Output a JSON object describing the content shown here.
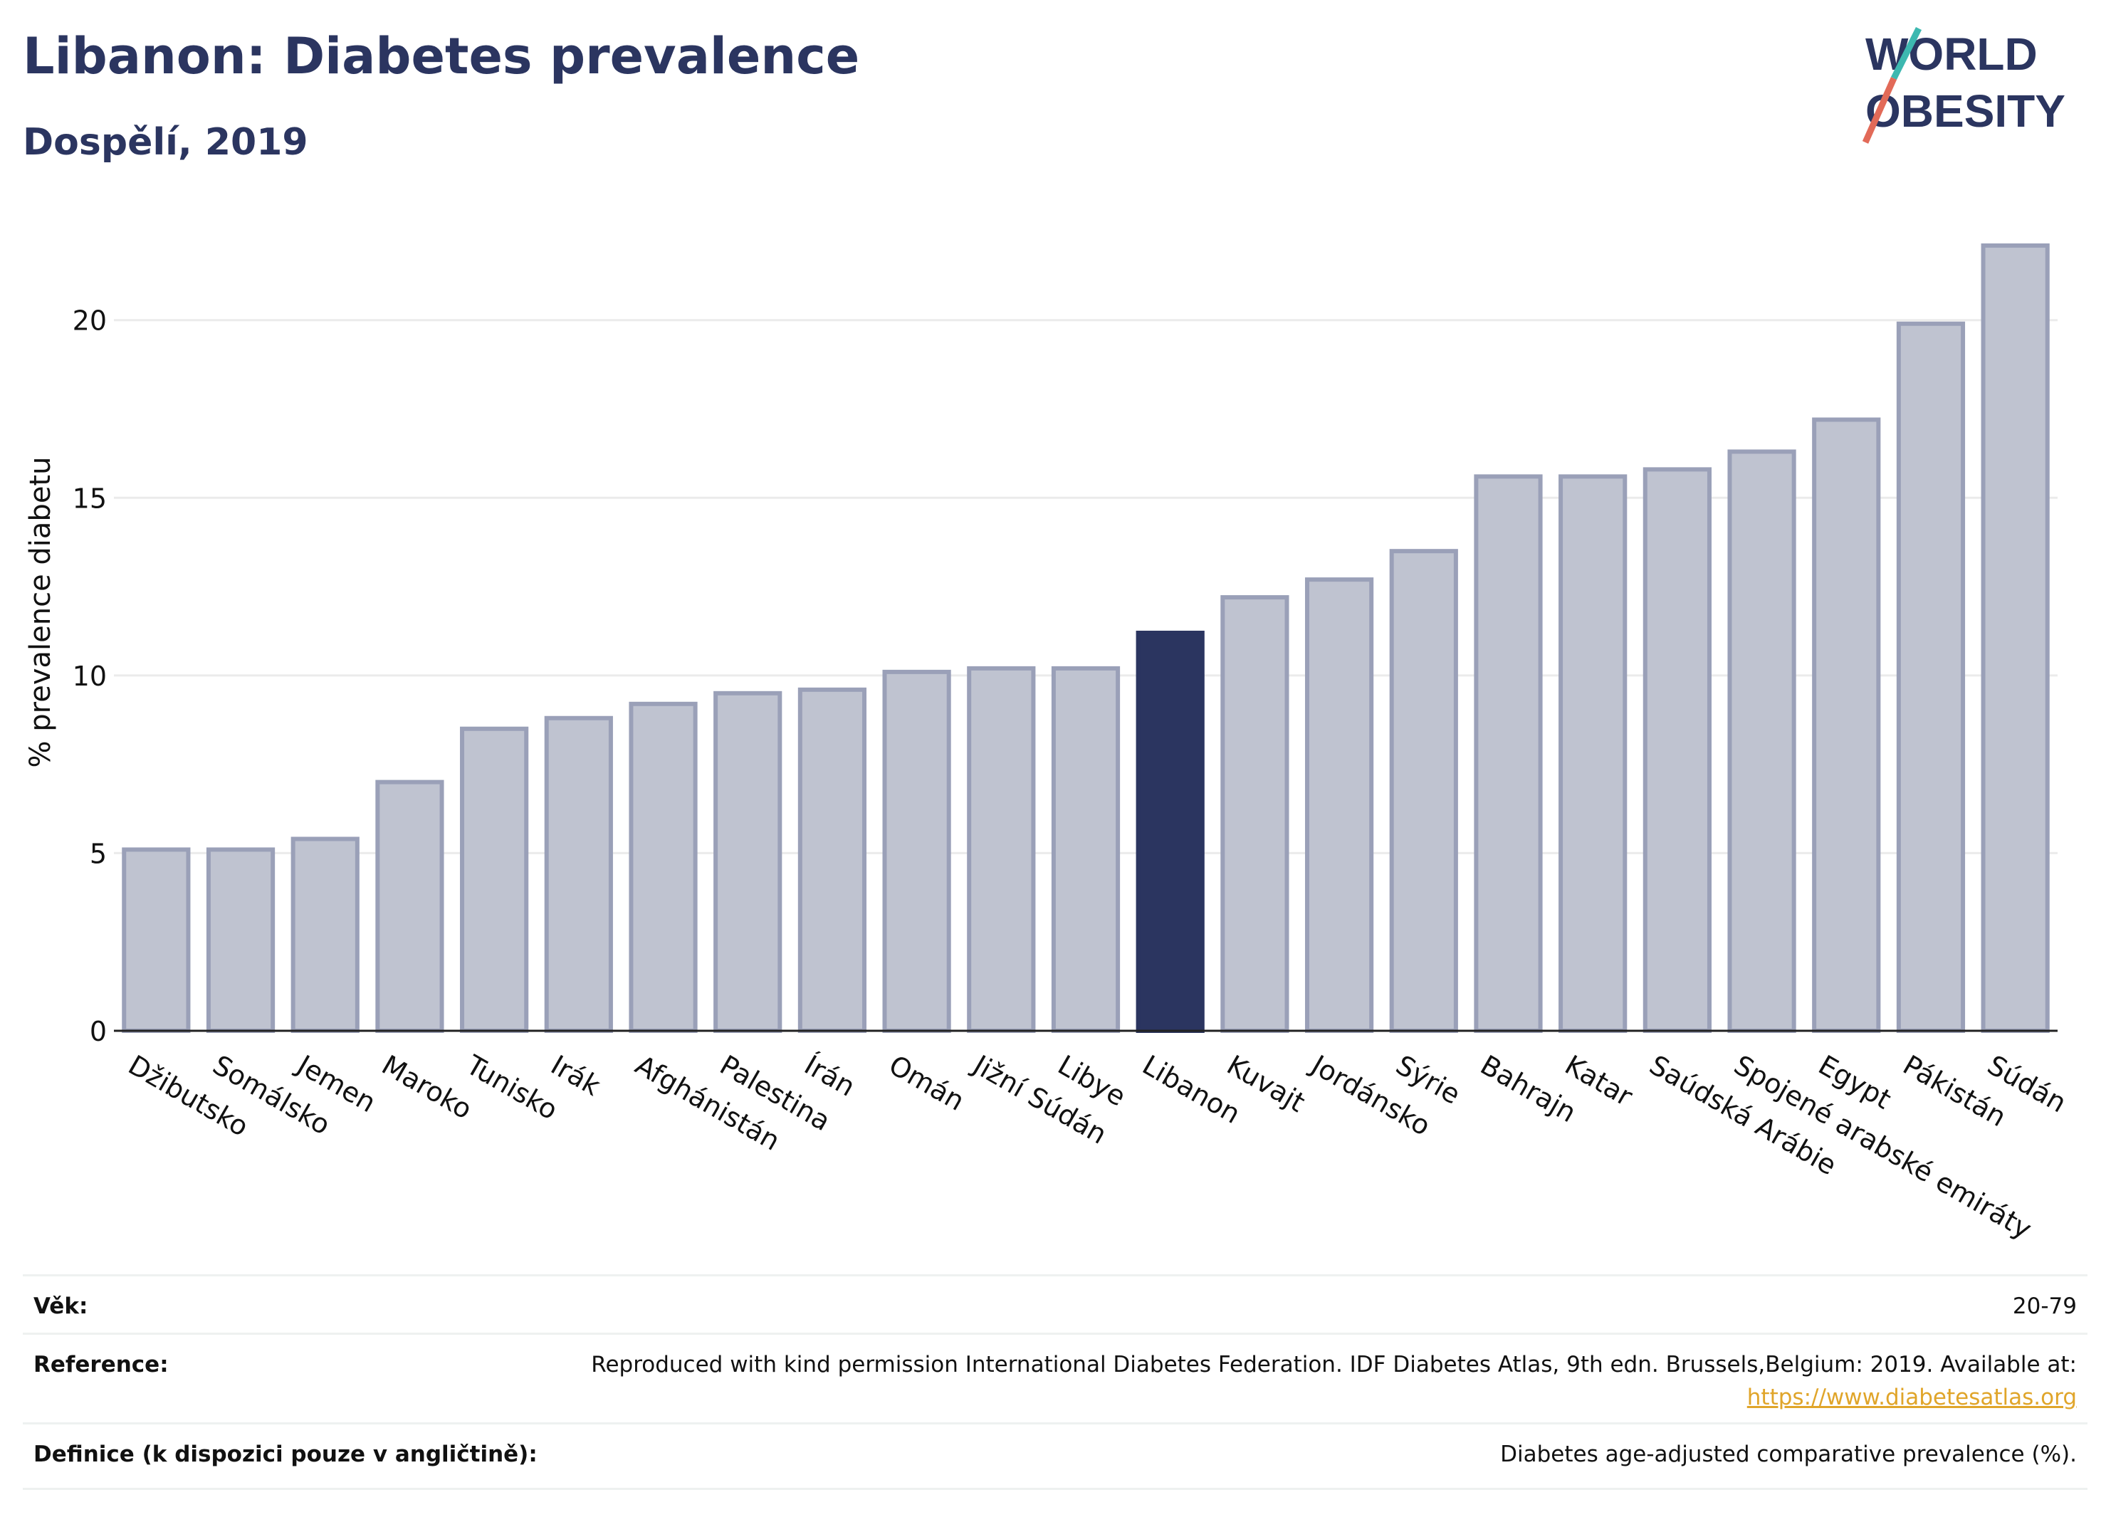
{
  "title": "Libanon: Diabetes prevalence",
  "subtitle": "Dospělí, 2019",
  "logo": {
    "line1": "WORLD",
    "line2": "OBESITY"
  },
  "colors": {
    "bar": "#bfc3d0",
    "bar_border": "#9aa0b8",
    "highlight": "#2b3560",
    "grid": "#ebebeb",
    "axis": "#222222",
    "text": "#2b3560",
    "link": "#e0a52a"
  },
  "chart_data": {
    "type": "bar",
    "ylabel": "% prevalence diabetu",
    "xlabel": "",
    "ylim": [
      0,
      23
    ],
    "yticks": [
      0,
      5,
      10,
      15,
      20
    ],
    "grid": true,
    "highlight": "Libanon",
    "categories": [
      "Džibutsko",
      "Somálsko",
      "Jemen",
      "Maroko",
      "Tunisko",
      "Irák",
      "Afghánistán",
      "Palestina",
      "Írán",
      "Omán",
      "Jižní Súdán",
      "Libye",
      "Libanon",
      "Kuvajt",
      "Jordánsko",
      "Sýrie",
      "Bahrajn",
      "Katar",
      "Saúdská Arábie",
      "Spojené arabské emiráty",
      "Egypt",
      "Pákistán",
      "Súdán"
    ],
    "values": [
      5.1,
      5.1,
      5.4,
      7.0,
      8.5,
      8.8,
      9.2,
      9.5,
      9.6,
      10.1,
      10.2,
      10.2,
      11.2,
      12.2,
      12.7,
      13.5,
      15.6,
      15.6,
      15.8,
      16.3,
      17.2,
      19.9,
      22.1
    ]
  },
  "info": {
    "age_label": "Věk:",
    "age_value": "20-79",
    "reference_label": "Reference:",
    "reference_text": "Reproduced with kind permission International Diabetes Federation. IDF Diabetes Atlas, 9th edn. Brussels,Belgium: 2019. Available at:",
    "reference_link": "https://www.diabetesatlas.org",
    "definition_label": "Definice (k dispozici pouze v angličtině):",
    "definition_value": "Diabetes age-adjusted comparative prevalence (%)."
  }
}
